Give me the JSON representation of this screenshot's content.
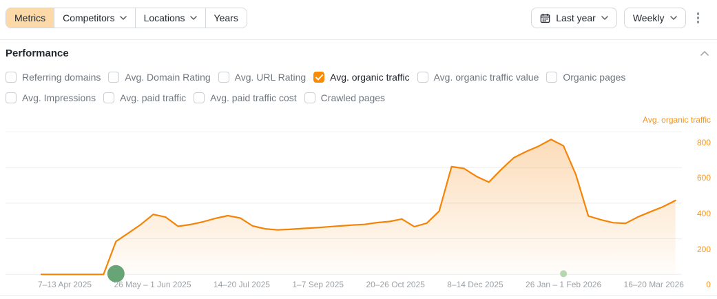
{
  "toolbar": {
    "tabs": [
      {
        "label": "Metrics",
        "active": true,
        "has_dropdown": false
      },
      {
        "label": "Competitors",
        "active": false,
        "has_dropdown": true
      },
      {
        "label": "Locations",
        "active": false,
        "has_dropdown": true
      },
      {
        "label": "Years",
        "active": false,
        "has_dropdown": false
      }
    ],
    "date_range_label": "Last year",
    "granularity_label": "Weekly"
  },
  "section": {
    "title": "Performance"
  },
  "metrics": {
    "items": [
      {
        "label": "Referring domains",
        "checked": false
      },
      {
        "label": "Avg. Domain Rating",
        "checked": false
      },
      {
        "label": "Avg. URL Rating",
        "checked": false
      },
      {
        "label": "Avg. organic traffic",
        "checked": true
      },
      {
        "label": "Avg. organic traffic value",
        "checked": false
      },
      {
        "label": "Organic pages",
        "checked": false
      },
      {
        "label": "Avg. Impressions",
        "checked": false
      },
      {
        "label": "Avg. paid traffic",
        "checked": false
      },
      {
        "label": "Avg. paid traffic cost",
        "checked": false
      },
      {
        "label": "Crawled pages",
        "checked": false
      }
    ],
    "row_split": 6
  },
  "chart_data": {
    "type": "area",
    "title": "Avg. organic traffic",
    "legend_position": "top-right",
    "grid": "horizontal",
    "ylim": [
      0,
      800
    ],
    "y_ticks": [
      "800",
      "600",
      "400",
      "200",
      "0"
    ],
    "y_tick_values": [
      800,
      600,
      400,
      200,
      0
    ],
    "x_tick_labels": [
      "7–13 Apr 2025",
      "26 May – 1 Jun 2025",
      "14–20 Jul 2025",
      "1–7 Sep 2025",
      "20–26 Oct 2025",
      "8–14 Dec 2025",
      "26 Jan – 1 Feb 2026",
      "16–20 Mar 2026"
    ],
    "series": [
      {
        "name": "Avg. organic traffic",
        "color": "#f48306",
        "values": [
          0,
          0,
          0,
          0,
          0,
          0,
          185,
          232,
          280,
          337,
          322,
          270,
          280,
          295,
          315,
          330,
          317,
          272,
          256,
          250,
          253,
          258,
          262,
          267,
          272,
          277,
          281,
          291,
          297,
          311,
          268,
          288,
          355,
          605,
          595,
          550,
          518,
          590,
          655,
          690,
          720,
          758,
          722,
          560,
          328,
          307,
          290,
          287,
          323,
          352,
          380,
          415
        ]
      }
    ],
    "annotations": [
      {
        "type": "event-dot",
        "x_index": 6,
        "color": "#68a576",
        "diameter": 25
      },
      {
        "type": "event-dot",
        "x_index": 42,
        "color": "#b5d9ae",
        "diameter": 10
      }
    ]
  },
  "colors": {
    "accent_orange": "#f48306",
    "tick_orange": "#f7941e",
    "active_tab_bg": "#fcd9a6",
    "checkbox_checked": "#f98a05",
    "grid_line": "#eceef0",
    "axis_text": "#9ba1a6"
  }
}
